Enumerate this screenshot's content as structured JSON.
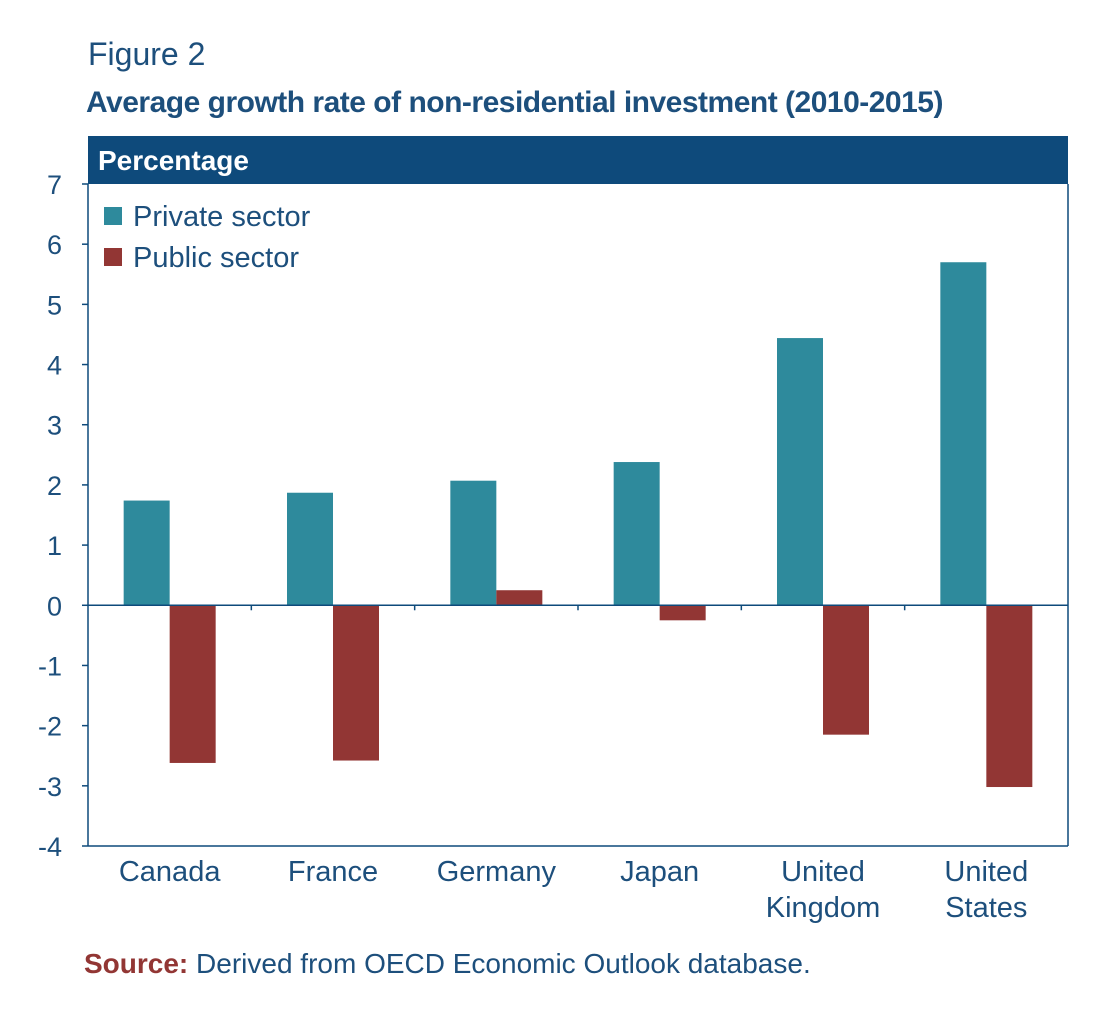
{
  "figure_label": "Figure 2",
  "source": {
    "label": "Source:",
    "text": " Derived from OECD Economic Outlook database."
  },
  "colors": {
    "private": "#2e8a9c",
    "public": "#923634",
    "navy": "#0e4a7b",
    "text": "#1d4f7c"
  },
  "chart_data": {
    "type": "bar",
    "title": "Average growth rate of non-residential investment (2010-2015)",
    "ylabel": "Percentage",
    "xlabel": "",
    "categories": [
      [
        "Canada"
      ],
      [
        "France"
      ],
      [
        "Germany"
      ],
      [
        "Japan"
      ],
      [
        "United",
        "Kingdom"
      ],
      [
        "United",
        "States"
      ]
    ],
    "series": [
      {
        "name": "Private sector",
        "color_key": "private",
        "values": [
          1.74,
          1.87,
          2.07,
          2.38,
          4.44,
          5.7
        ]
      },
      {
        "name": "Public sector",
        "color_key": "public",
        "values": [
          -2.62,
          -2.58,
          0.25,
          -0.25,
          -2.15,
          -3.02
        ]
      }
    ],
    "ylim": [
      -4,
      7
    ],
    "yticks": [
      7,
      6,
      5,
      4,
      3,
      2,
      1,
      0,
      -1,
      -2,
      -3,
      -4
    ],
    "grid": false,
    "legend": "top-left"
  }
}
